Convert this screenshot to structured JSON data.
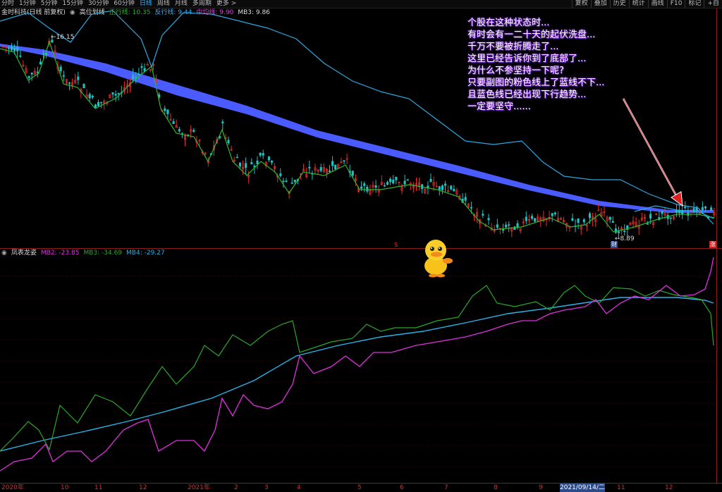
{
  "toolbar": {
    "tabs": [
      "分时",
      "1分钟",
      "5分钟",
      "15分钟",
      "30分钟",
      "60分钟",
      "日线",
      "周线",
      "月线",
      "多周期",
      "更多 >"
    ],
    "active_tab": "日线",
    "right_buttons": [
      "复权",
      "叠加",
      "历史",
      "统计",
      "画线",
      "F10",
      "标记",
      "+自"
    ]
  },
  "main_header": {
    "stock": "金时科技(日线 前复权)",
    "indicator_name": "高位划线",
    "zhengxing": "正行线: 10.35",
    "fanxing": "反行线: 9.44",
    "zhongjun": "中均线: 9.90",
    "mb3": "MB3: 9.86"
  },
  "sub_header": {
    "name": "凤表龙姿",
    "mb2": "MB2: -23.85",
    "mb3": "MB3: -34.69",
    "mb4": "MB4: -29.27"
  },
  "price_labels": {
    "high": "16.15",
    "low": "8.89"
  },
  "markers": {
    "s1": "S",
    "cai": "财",
    "zhang": "涨"
  },
  "annotation": [
    "个股在这种状态时...",
    "有时会有一二十天的起伏洗盘...",
    "千万不要被折腾走了...",
    "这里已经告诉你到了底部了...",
    "为什么不参坚持一下呢?",
    "只要副图的粉色线上了蓝线不下...",
    "且蓝色线已经出现下行趋势...",
    "一定要坚守......"
  ],
  "bottom_axis": {
    "labels": [
      "2020年",
      "10",
      "11",
      "12",
      "2021年",
      "2",
      "3",
      "4",
      "5",
      "6",
      "7",
      "8",
      "9",
      "2021/09/14/二",
      "11",
      "12"
    ]
  },
  "colors": {
    "zhengxing": "#2db52d",
    "fanxing": "#3ab0ff",
    "zhongjun": "#e040e0",
    "ma_band": "#4a5cff",
    "boll": "#2ba8e0",
    "pink": "#e030e0",
    "green": "#2aa82a",
    "blue": "#28b4e8"
  },
  "icons": [
    "duck-icon",
    "collapse-icon"
  ]
}
